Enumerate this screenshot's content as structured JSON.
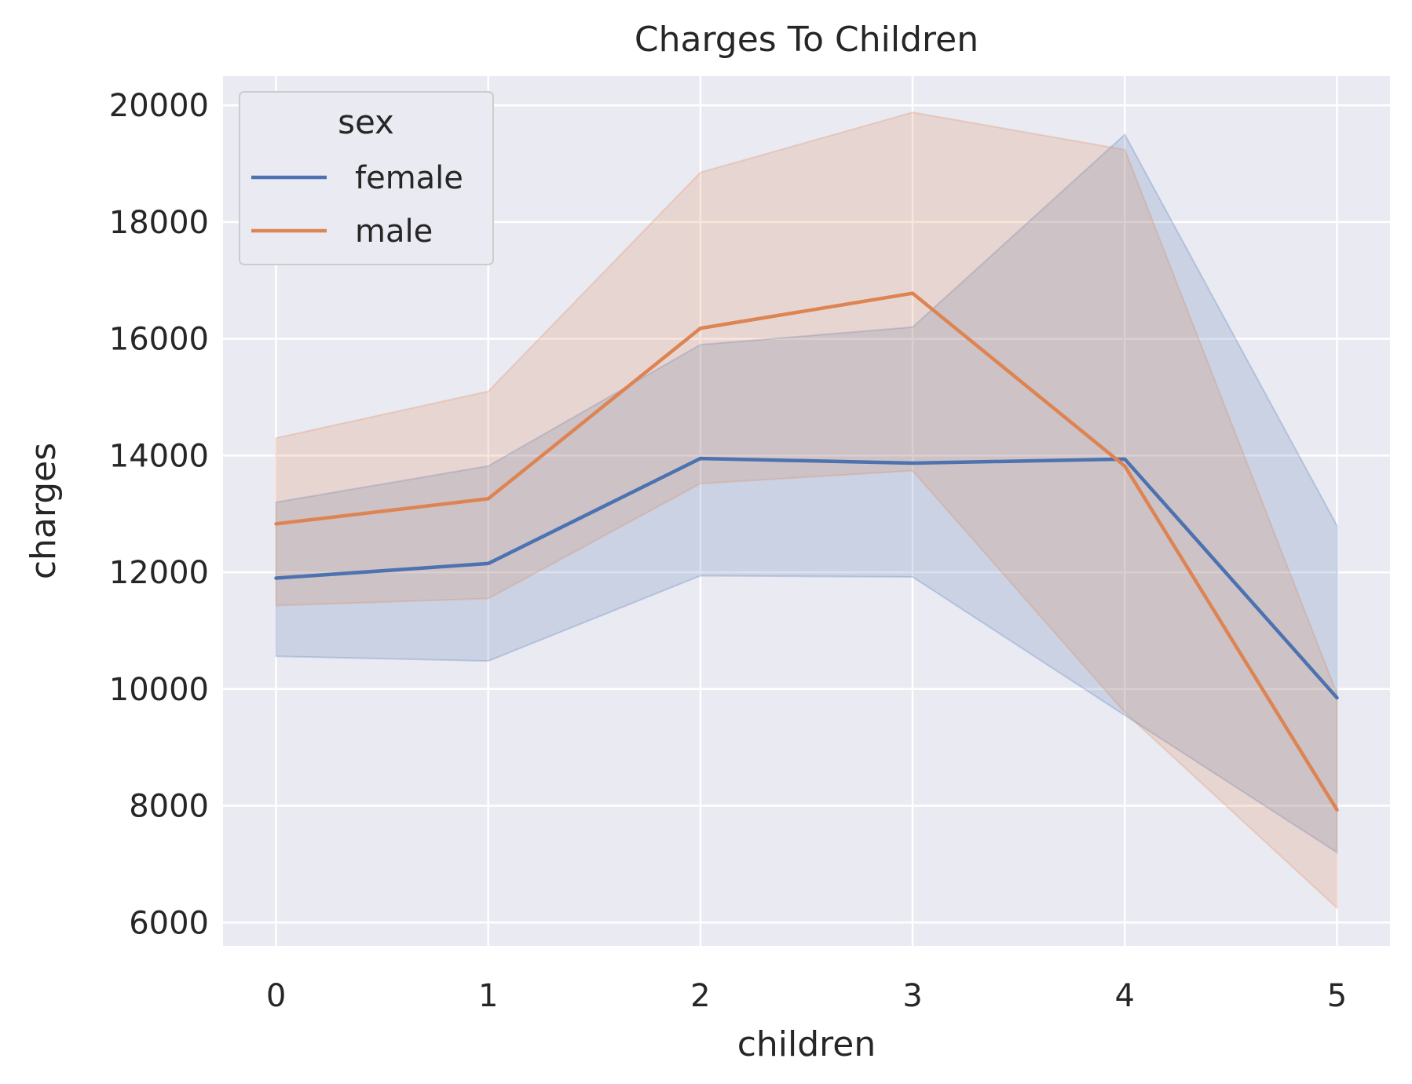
{
  "chart_data": {
    "type": "line",
    "title": "Charges To Children",
    "xlabel": "children",
    "ylabel": "charges",
    "x": [
      0,
      1,
      2,
      3,
      4,
      5
    ],
    "x_ticks": [
      "0",
      "1",
      "2",
      "3",
      "4",
      "5"
    ],
    "xlim": [
      -0.25,
      5.25
    ],
    "ylim": [
      5600,
      20500
    ],
    "y_ticks": [
      "6000",
      "8000",
      "10000",
      "12000",
      "14000",
      "16000",
      "18000",
      "20000"
    ],
    "grid": true,
    "legend": {
      "title": "sex",
      "placement": "top-left"
    },
    "series": [
      {
        "name": "female",
        "color": "#4c72b0",
        "values": [
          11900,
          12150,
          13950,
          13870,
          13940,
          9850
        ],
        "ci_low": [
          10560,
          10480,
          11940,
          11920,
          9550,
          7200
        ],
        "ci_high": [
          13200,
          13820,
          15900,
          16200,
          19500,
          12800
        ]
      },
      {
        "name": "male",
        "color": "#dd8452",
        "values": [
          12830,
          13260,
          16180,
          16780,
          13820,
          7930
        ],
        "ci_low": [
          11430,
          11550,
          13520,
          13740,
          9600,
          6250
        ],
        "ci_high": [
          14300,
          15100,
          18850,
          19880,
          19240,
          9920
        ]
      }
    ]
  }
}
